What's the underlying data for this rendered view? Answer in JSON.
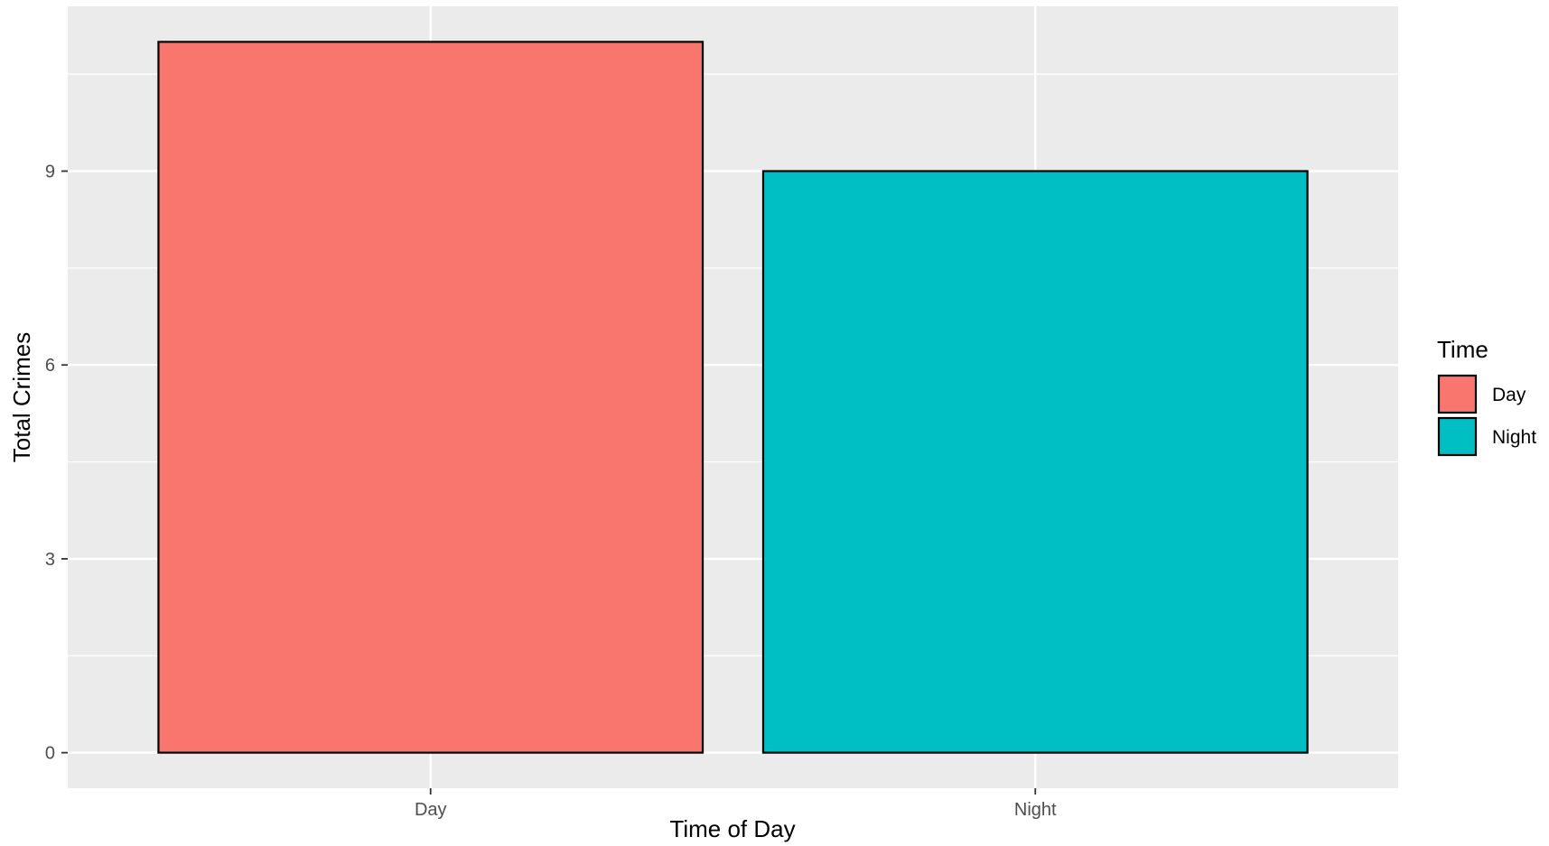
{
  "chart_data": {
    "type": "bar",
    "categories": [
      "Day",
      "Night"
    ],
    "values": [
      11,
      9
    ],
    "colors": [
      "#F8766D",
      "#00BFC4"
    ],
    "xlabel": "Time of Day",
    "ylabel": "Total Crimes",
    "ylim": [
      -0.55,
      11.55
    ],
    "yticks": [
      0,
      3,
      6,
      9
    ],
    "yticks_minor": [
      1.5,
      4.5,
      7.5,
      10.5
    ],
    "grid": true,
    "panel_background": "#EBEBEB",
    "legend": {
      "title": "Time",
      "placement": "right",
      "entries": [
        "Day",
        "Night"
      ]
    }
  }
}
